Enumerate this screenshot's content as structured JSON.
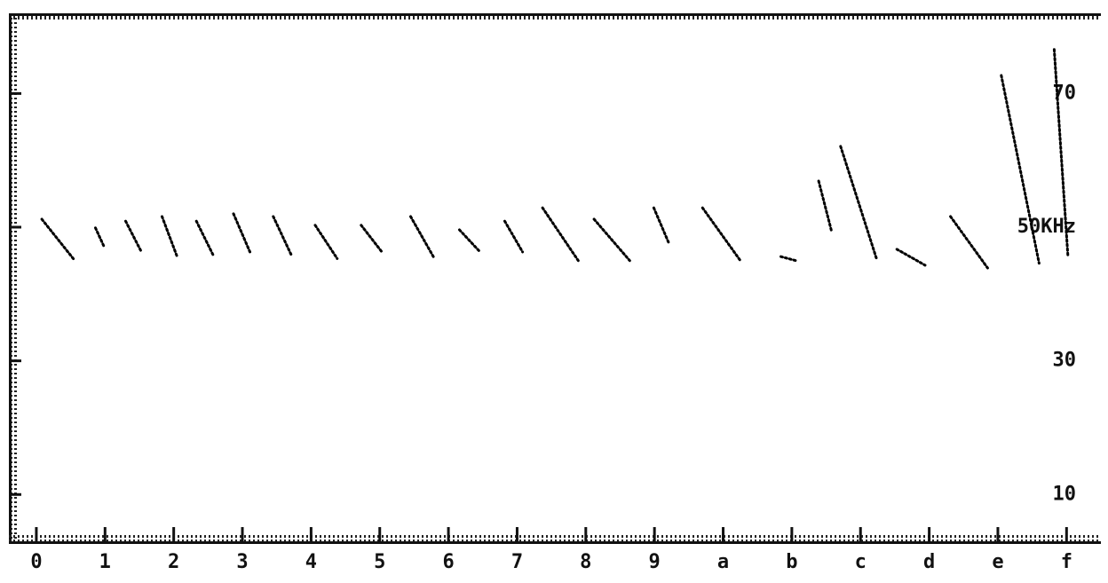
{
  "chart_data": {
    "type": "line",
    "xlim": [
      -0.4,
      15.5
    ],
    "ylim": [
      3,
      82
    ],
    "xticks": [
      0,
      1,
      2,
      3,
      4,
      5,
      6,
      7,
      8,
      9,
      {
        "value": 10,
        "label": "a"
      },
      {
        "value": 11,
        "label": "b"
      },
      {
        "value": 12,
        "label": "c"
      },
      {
        "value": 13,
        "label": "d"
      },
      {
        "value": 14,
        "label": "e"
      },
      {
        "value": 15,
        "label": "f"
      }
    ],
    "yticks": [
      10,
      30,
      {
        "value": 50,
        "label": "50KHz"
      },
      70
    ],
    "series": [
      {
        "color": "#000000",
        "x": [
          0.08,
          0.56,
          null,
          0.86,
          0.99,
          null,
          1.3,
          1.53,
          null,
          1.83,
          2.05,
          null,
          2.33,
          2.57,
          null,
          2.87,
          3.11,
          null,
          3.45,
          3.71,
          null,
          4.06,
          4.38,
          null,
          4.73,
          5.03,
          null,
          5.45,
          5.78,
          null,
          6.16,
          6.46,
          null,
          6.82,
          7.08,
          null,
          7.37,
          7.89,
          null,
          8.12,
          8.64,
          null,
          8.99,
          9.21,
          null,
          9.7,
          10.25,
          null,
          10.84,
          11.06,
          null,
          11.39,
          11.58,
          null,
          11.71,
          12.23,
          null,
          12.53,
          12.94,
          null,
          13.31,
          13.85,
          null,
          14.05,
          14.6,
          null,
          14.82,
          15.02
        ],
        "values": [
          51.2,
          45.0,
          null,
          49.9,
          47.0,
          null,
          50.9,
          46.3,
          null,
          51.6,
          45.6,
          null,
          50.9,
          45.9,
          null,
          52.0,
          46.3,
          null,
          51.6,
          45.9,
          null,
          50.3,
          45.3,
          null,
          50.3,
          46.3,
          null,
          51.6,
          45.6,
          null,
          49.6,
          46.3,
          null,
          50.9,
          46.3,
          null,
          52.9,
          45.0,
          null,
          51.2,
          45.0,
          null,
          52.9,
          47.6,
          null,
          52.9,
          45.0,
          null,
          45.6,
          45.0,
          null,
          56.9,
          49.3,
          null,
          62.1,
          45.4,
          null,
          46.7,
          44.3,
          null,
          51.6,
          43.9,
          null,
          72.7,
          44.6,
          null,
          76.6,
          45.6
        ]
      }
    ]
  }
}
